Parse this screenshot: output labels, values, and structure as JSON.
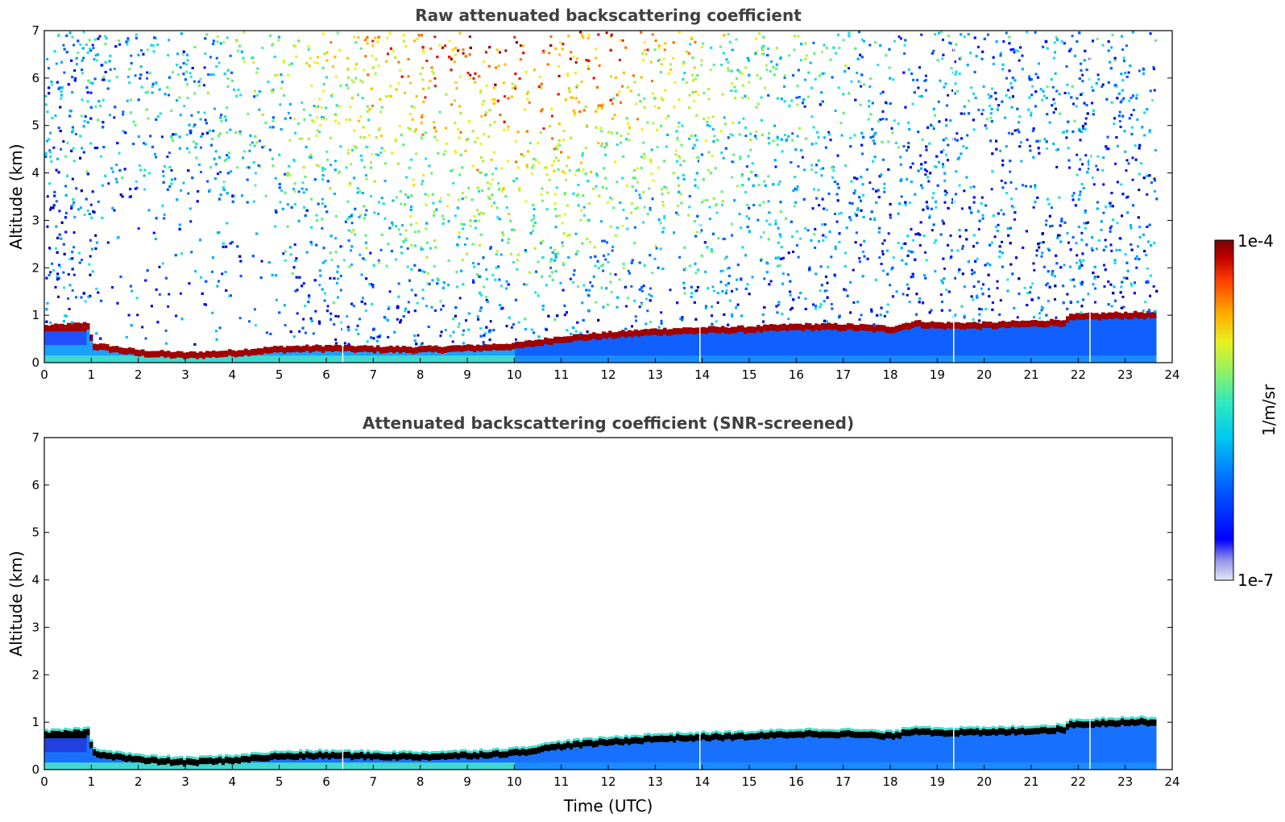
{
  "chart_data": [
    {
      "type": "heatmap",
      "title": "Raw attenuated backscattering coefficient",
      "xlabel": "",
      "ylabel": "Altitude (km)",
      "xlim": [
        0,
        24
      ],
      "ylim": [
        0,
        7
      ],
      "xticks": [
        "0",
        "1",
        "2",
        "3",
        "4",
        "5",
        "6",
        "7",
        "8",
        "9",
        "10",
        "11",
        "12",
        "13",
        "14",
        "15",
        "16",
        "17",
        "18",
        "19",
        "20",
        "21",
        "22",
        "23",
        "24"
      ],
      "yticks": [
        "0",
        "1",
        "2",
        "3",
        "4",
        "5",
        "6",
        "7"
      ],
      "data_end_time": 23.65,
      "layer_top_km": [
        {
          "t": 0.0,
          "z": 0.72
        },
        {
          "t": 0.9,
          "z": 0.78
        },
        {
          "t": 1.0,
          "z": 0.35
        },
        {
          "t": 2.0,
          "z": 0.2
        },
        {
          "t": 3.0,
          "z": 0.15
        },
        {
          "t": 4.0,
          "z": 0.2
        },
        {
          "t": 5.0,
          "z": 0.28
        },
        {
          "t": 6.0,
          "z": 0.3
        },
        {
          "t": 7.0,
          "z": 0.28
        },
        {
          "t": 8.0,
          "z": 0.27
        },
        {
          "t": 9.0,
          "z": 0.3
        },
        {
          "t": 10.0,
          "z": 0.35
        },
        {
          "t": 11.0,
          "z": 0.5
        },
        {
          "t": 12.0,
          "z": 0.58
        },
        {
          "t": 13.0,
          "z": 0.65
        },
        {
          "t": 14.0,
          "z": 0.68
        },
        {
          "t": 15.0,
          "z": 0.7
        },
        {
          "t": 16.0,
          "z": 0.75
        },
        {
          "t": 17.0,
          "z": 0.75
        },
        {
          "t": 18.0,
          "z": 0.7
        },
        {
          "t": 18.5,
          "z": 0.82
        },
        {
          "t": 19.0,
          "z": 0.78
        },
        {
          "t": 20.0,
          "z": 0.78
        },
        {
          "t": 21.0,
          "z": 0.82
        },
        {
          "t": 21.7,
          "z": 0.85
        },
        {
          "t": 21.8,
          "z": 0.95
        },
        {
          "t": 23.0,
          "z": 1.0
        },
        {
          "t": 23.65,
          "z": 1.0
        }
      ],
      "data_gaps_utc": [
        6.35,
        13.95,
        19.35,
        22.25
      ]
    },
    {
      "type": "heatmap",
      "title": "Attenuated backscattering coefficient (SNR-screened)",
      "xlabel": "Time (UTC)",
      "ylabel": "Altitude (km)",
      "xlim": [
        0,
        24
      ],
      "ylim": [
        0,
        7
      ],
      "xticks": [
        "0",
        "1",
        "2",
        "3",
        "4",
        "5",
        "6",
        "7",
        "8",
        "9",
        "10",
        "11",
        "12",
        "13",
        "14",
        "15",
        "16",
        "17",
        "18",
        "19",
        "20",
        "21",
        "22",
        "23",
        "24"
      ],
      "yticks": [
        "0",
        "1",
        "2",
        "3",
        "4",
        "5",
        "6",
        "7"
      ],
      "data_end_time": 23.65
    }
  ],
  "colorbar": {
    "max_label": "1e-4",
    "min_label": "1e-7",
    "unit_label": "1/m/sr",
    "colormap": [
      "#0000b0",
      "#0010ff",
      "#0060ff",
      "#00b0ff",
      "#20e0e0",
      "#60f080",
      "#b0f040",
      "#f0f020",
      "#ffc000",
      "#ff7000",
      "#e81000",
      "#a00000",
      "#780000"
    ]
  }
}
